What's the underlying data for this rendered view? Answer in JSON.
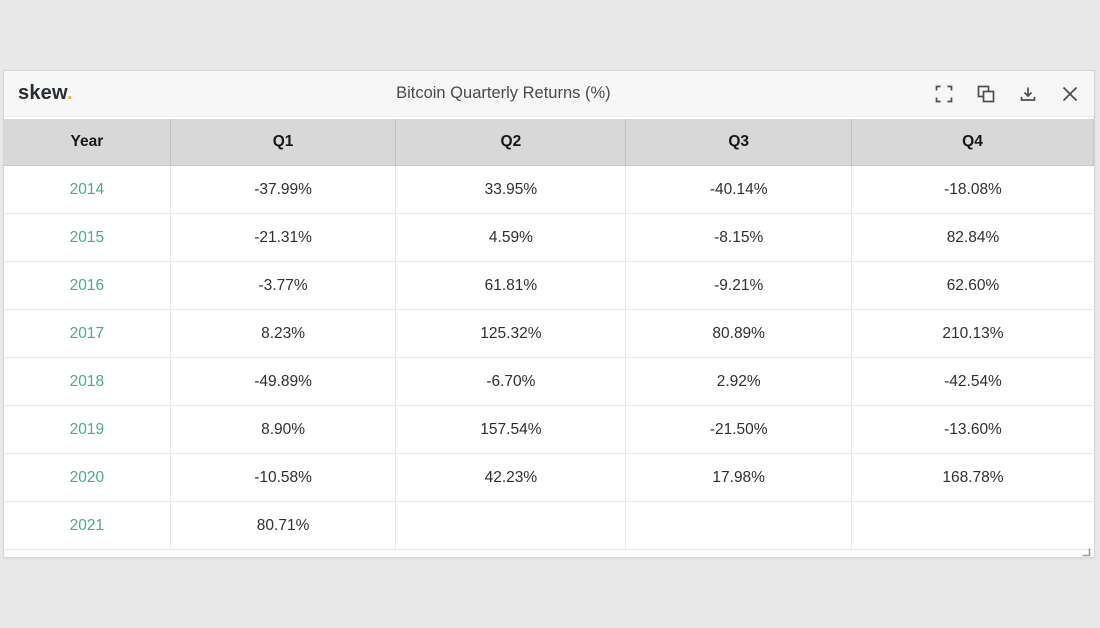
{
  "widget": {
    "logo_text": "skew",
    "logo_dot": ".",
    "title": "Bitcoin Quarterly Returns (%)",
    "toolbar": {
      "fullscreen_label": "fullscreen",
      "copy_label": "copy",
      "download_label": "download",
      "close_label": "close"
    }
  },
  "table": {
    "columns": [
      "Year",
      "Q1",
      "Q2",
      "Q3",
      "Q4"
    ],
    "rows": [
      {
        "year": "2014",
        "values": [
          "-37.99%",
          "33.95%",
          "-40.14%",
          "-18.08%"
        ]
      },
      {
        "year": "2015",
        "values": [
          "-21.31%",
          "4.59%",
          "-8.15%",
          "82.84%"
        ]
      },
      {
        "year": "2016",
        "values": [
          "-3.77%",
          "61.81%",
          "-9.21%",
          "62.60%"
        ]
      },
      {
        "year": "2017",
        "values": [
          "8.23%",
          "125.32%",
          "80.89%",
          "210.13%"
        ]
      },
      {
        "year": "2018",
        "values": [
          "-49.89%",
          "-6.70%",
          "2.92%",
          "-42.54%"
        ]
      },
      {
        "year": "2019",
        "values": [
          "8.90%",
          "157.54%",
          "-21.50%",
          "-13.60%"
        ]
      },
      {
        "year": "2020",
        "values": [
          "-10.58%",
          "42.23%",
          "17.98%",
          "168.78%"
        ]
      },
      {
        "year": "2021",
        "values": [
          "80.71%",
          "",
          "",
          ""
        ]
      }
    ]
  },
  "colors": {
    "year_accent_green": "#4aab84",
    "logo_dot_amber": "#e9b64d",
    "header_row_gray": "#d8d8d8",
    "titlebar_gray": "#f7f7f7",
    "page_background": "#e8e8e8"
  },
  "chart_data": {
    "type": "table",
    "title": "Bitcoin Quarterly Returns (%)",
    "categories": [
      "Q1",
      "Q2",
      "Q3",
      "Q4"
    ],
    "row_label": "Year",
    "series": [
      {
        "name": "2014",
        "values": [
          -37.99,
          33.95,
          -40.14,
          -18.08
        ]
      },
      {
        "name": "2015",
        "values": [
          -21.31,
          4.59,
          -8.15,
          82.84
        ]
      },
      {
        "name": "2016",
        "values": [
          -3.77,
          61.81,
          -9.21,
          62.6
        ]
      },
      {
        "name": "2017",
        "values": [
          8.23,
          125.32,
          80.89,
          210.13
        ]
      },
      {
        "name": "2018",
        "values": [
          -49.89,
          -6.7,
          2.92,
          -42.54
        ]
      },
      {
        "name": "2019",
        "values": [
          8.9,
          157.54,
          -21.5,
          -13.6
        ]
      },
      {
        "name": "2020",
        "values": [
          -10.58,
          42.23,
          17.98,
          168.78
        ]
      },
      {
        "name": "2021",
        "values": [
          80.71,
          null,
          null,
          null
        ]
      }
    ],
    "unit": "%"
  }
}
